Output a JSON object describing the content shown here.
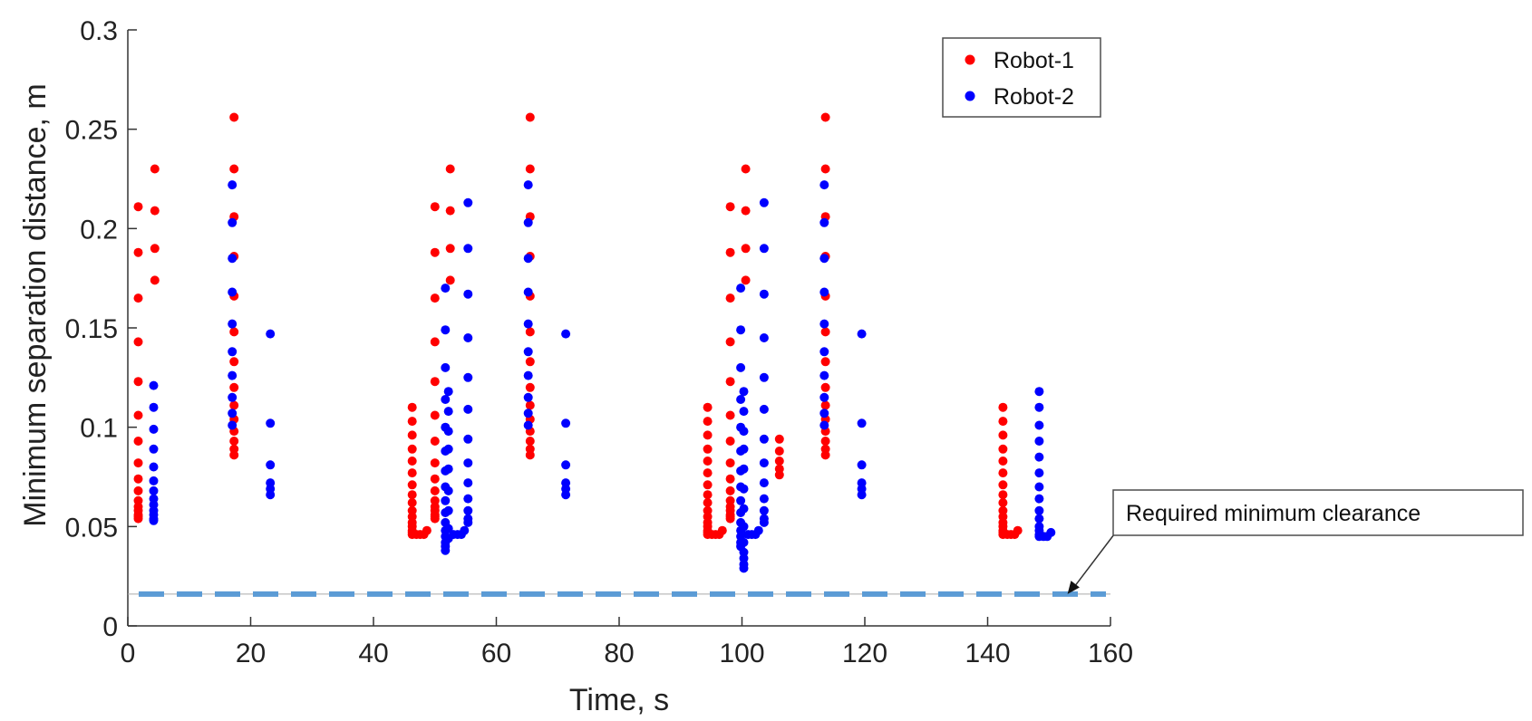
{
  "chart_data": {
    "type": "scatter",
    "title": "",
    "xlabel": "Time, s",
    "ylabel": "Minimum separation distance, m",
    "xlim": [
      0,
      160
    ],
    "ylim": [
      0,
      0.3
    ],
    "xticks": [
      0,
      20,
      40,
      60,
      80,
      100,
      120,
      140,
      160
    ],
    "yticks": [
      0,
      0.05,
      0.1,
      0.15,
      0.2,
      0.25,
      0.3
    ],
    "xtick_labels": [
      "0",
      "20",
      "40",
      "60",
      "80",
      "100",
      "120",
      "140",
      "160"
    ],
    "ytick_labels": [
      "0",
      "0.05",
      "0.1",
      "0.15",
      "0.2",
      "0.25",
      "0.3"
    ],
    "grid": false,
    "legend_position": "top-right",
    "series": [
      {
        "name": "Robot-1",
        "color": "#ff0000",
        "columns": [
          {
            "x": 1.7,
            "y": [
              0.211,
              0.188,
              0.165,
              0.143,
              0.123,
              0.106,
              0.093,
              0.082,
              0.074,
              0.068,
              0.063,
              0.06,
              0.058,
              0.056,
              0.055,
              0.054
            ]
          },
          {
            "x": 4.4,
            "y": [
              0.23,
              0.209,
              0.19,
              0.174
            ]
          },
          {
            "x": 17.3,
            "y": [
              0.256,
              0.23,
              0.206,
              0.186,
              0.166,
              0.148,
              0.133,
              0.12,
              0.111,
              0.104,
              0.098,
              0.093,
              0.089,
              0.086
            ]
          },
          {
            "x": 46.3,
            "y": [
              0.11,
              0.103,
              0.096,
              0.089,
              0.083,
              0.077,
              0.071,
              0.066,
              0.062,
              0.058,
              0.055,
              0.052,
              0.05,
              0.048,
              0.047,
              0.046
            ]
          },
          {
            "x": 47.0,
            "y": [
              0.046
            ]
          },
          {
            "x": 47.6,
            "y": [
              0.046
            ]
          },
          {
            "x": 48.2,
            "y": [
              0.046
            ]
          },
          {
            "x": 48.7,
            "y": [
              0.048
            ]
          },
          {
            "x": 50.0,
            "y": [
              0.211,
              0.188,
              0.165,
              0.143,
              0.123,
              0.106,
              0.093,
              0.082,
              0.074,
              0.068,
              0.063,
              0.06,
              0.058,
              0.056,
              0.055,
              0.054
            ]
          },
          {
            "x": 52.5,
            "y": [
              0.23,
              0.209,
              0.19,
              0.174
            ]
          },
          {
            "x": 65.5,
            "y": [
              0.256,
              0.23,
              0.206,
              0.186,
              0.166,
              0.148,
              0.133,
              0.12,
              0.111,
              0.104,
              0.098,
              0.093,
              0.089,
              0.086
            ]
          },
          {
            "x": 94.4,
            "y": [
              0.11,
              0.103,
              0.096,
              0.089,
              0.083,
              0.077,
              0.071,
              0.066,
              0.062,
              0.058,
              0.055,
              0.052,
              0.05,
              0.048,
              0.047,
              0.046
            ]
          },
          {
            "x": 95.1,
            "y": [
              0.046
            ]
          },
          {
            "x": 95.7,
            "y": [
              0.046
            ]
          },
          {
            "x": 96.3,
            "y": [
              0.046
            ]
          },
          {
            "x": 96.8,
            "y": [
              0.048
            ]
          },
          {
            "x": 98.1,
            "y": [
              0.211,
              0.188,
              0.165,
              0.143,
              0.123,
              0.106,
              0.093,
              0.082,
              0.074,
              0.068,
              0.063,
              0.06,
              0.058,
              0.056,
              0.055,
              0.054
            ]
          },
          {
            "x": 100.6,
            "y": [
              0.23,
              0.209,
              0.19,
              0.174
            ]
          },
          {
            "x": 106.1,
            "y": [
              0.094,
              0.088,
              0.083,
              0.079,
              0.076
            ]
          },
          {
            "x": 113.6,
            "y": [
              0.256,
              0.23,
              0.206,
              0.186,
              0.166,
              0.148,
              0.133,
              0.12,
              0.111,
              0.104,
              0.098,
              0.093,
              0.089,
              0.086
            ]
          },
          {
            "x": 142.5,
            "y": [
              0.11,
              0.103,
              0.096,
              0.089,
              0.083,
              0.077,
              0.071,
              0.066,
              0.062,
              0.058,
              0.055,
              0.052,
              0.05,
              0.048,
              0.047,
              0.046
            ]
          },
          {
            "x": 143.2,
            "y": [
              0.046
            ]
          },
          {
            "x": 143.8,
            "y": [
              0.046
            ]
          },
          {
            "x": 144.4,
            "y": [
              0.046
            ]
          },
          {
            "x": 144.9,
            "y": [
              0.048
            ]
          }
        ]
      },
      {
        "name": "Robot-2",
        "color": "#0000ff",
        "columns": [
          {
            "x": 4.2,
            "y": [
              0.121,
              0.11,
              0.099,
              0.089,
              0.08,
              0.073,
              0.068,
              0.064,
              0.061,
              0.058,
              0.056,
              0.054,
              0.053
            ]
          },
          {
            "x": 17.0,
            "y": [
              0.222,
              0.203,
              0.185,
              0.168,
              0.152,
              0.138,
              0.126,
              0.115,
              0.107,
              0.101
            ]
          },
          {
            "x": 23.2,
            "y": [
              0.147,
              0.102,
              0.081,
              0.072,
              0.069,
              0.066
            ]
          },
          {
            "x": 51.7,
            "y": [
              0.17,
              0.149,
              0.13,
              0.114,
              0.1,
              0.088,
              0.078,
              0.07,
              0.063,
              0.057,
              0.052,
              0.048,
              0.045,
              0.042,
              0.04,
              0.038
            ]
          },
          {
            "x": 52.2,
            "y": [
              0.118,
              0.108,
              0.098,
              0.089,
              0.079,
              0.068,
              0.058,
              0.049,
              0.044
            ]
          },
          {
            "x": 53.0,
            "y": [
              0.046
            ]
          },
          {
            "x": 53.7,
            "y": [
              0.046
            ]
          },
          {
            "x": 54.3,
            "y": [
              0.046
            ]
          },
          {
            "x": 54.8,
            "y": [
              0.048
            ]
          },
          {
            "x": 55.4,
            "y": [
              0.213,
              0.19,
              0.167,
              0.145,
              0.125,
              0.109,
              0.094,
              0.082,
              0.072,
              0.064,
              0.058,
              0.054,
              0.052
            ]
          },
          {
            "x": 65.2,
            "y": [
              0.222,
              0.203,
              0.185,
              0.168,
              0.152,
              0.138,
              0.126,
              0.115,
              0.107,
              0.101
            ]
          },
          {
            "x": 71.3,
            "y": [
              0.147,
              0.102,
              0.081,
              0.072,
              0.069,
              0.066
            ]
          },
          {
            "x": 99.8,
            "y": [
              0.17,
              0.149,
              0.13,
              0.114,
              0.1,
              0.088,
              0.078,
              0.07,
              0.063,
              0.057,
              0.052,
              0.048,
              0.045,
              0.042,
              0.04
            ]
          },
          {
            "x": 100.3,
            "y": [
              0.118,
              0.108,
              0.098,
              0.089,
              0.079,
              0.069,
              0.059,
              0.05,
              0.042,
              0.037,
              0.034,
              0.031,
              0.029
            ]
          },
          {
            "x": 101.0,
            "y": [
              0.046
            ]
          },
          {
            "x": 101.6,
            "y": [
              0.046
            ]
          },
          {
            "x": 102.2,
            "y": [
              0.046
            ]
          },
          {
            "x": 102.7,
            "y": [
              0.048
            ]
          },
          {
            "x": 103.6,
            "y": [
              0.213,
              0.19,
              0.167,
              0.145,
              0.125,
              0.109,
              0.094,
              0.082,
              0.072,
              0.064,
              0.058,
              0.054,
              0.052
            ]
          },
          {
            "x": 113.4,
            "y": [
              0.222,
              0.203,
              0.185,
              0.168,
              0.152,
              0.138,
              0.126,
              0.115,
              0.107,
              0.101
            ]
          },
          {
            "x": 119.5,
            "y": [
              0.147,
              0.102,
              0.081,
              0.072,
              0.069,
              0.066
            ]
          },
          {
            "x": 148.4,
            "y": [
              0.118,
              0.11,
              0.101,
              0.093,
              0.085,
              0.077,
              0.07,
              0.064,
              0.058,
              0.054,
              0.05,
              0.048,
              0.046,
              0.045
            ]
          },
          {
            "x": 149.1,
            "y": [
              0.045
            ]
          },
          {
            "x": 149.7,
            "y": [
              0.045
            ]
          },
          {
            "x": 150.3,
            "y": [
              0.047
            ]
          }
        ]
      }
    ],
    "reference_line": {
      "y": 0.016,
      "color": "#5b9bd5",
      "style": "dashed"
    },
    "annotation": {
      "text": "Required minimum clearance",
      "arrow_to": {
        "x": 153,
        "y": 0.016
      }
    }
  }
}
